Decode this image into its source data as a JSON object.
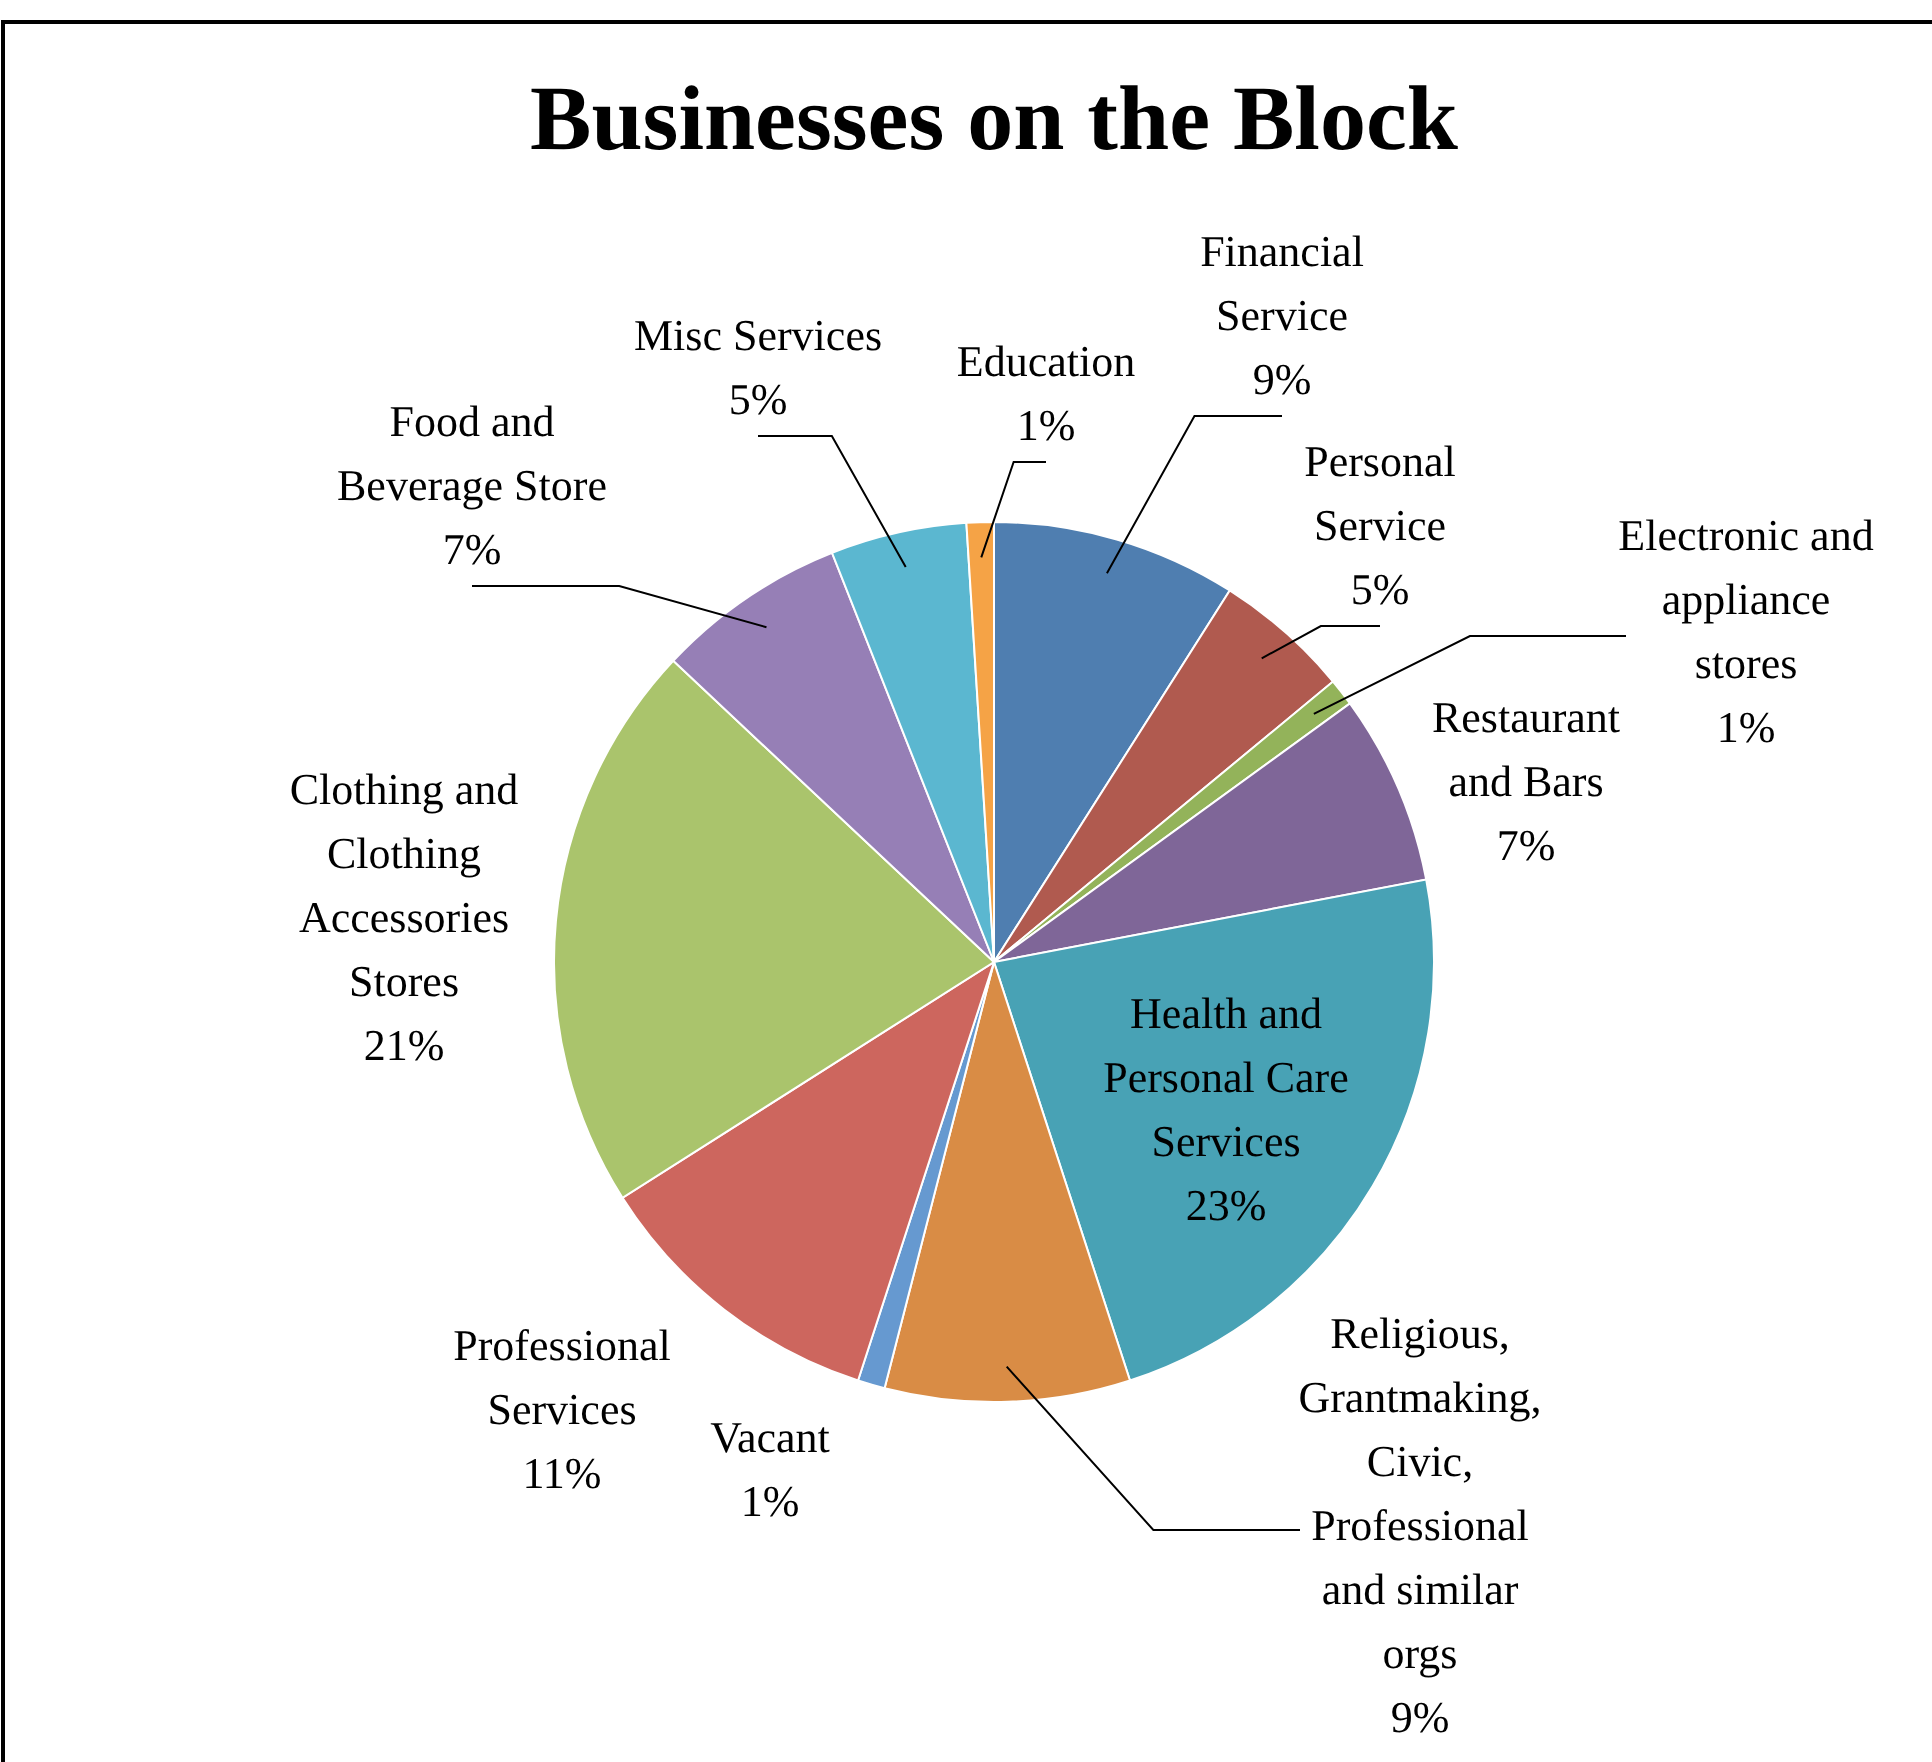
{
  "chart_data": {
    "type": "pie",
    "title": "Businesses  on  the Block",
    "categories": [
      "Financial Service",
      "Personal Service",
      "Electronic and appliance stores",
      "Restaurant and Bars",
      "Health and Personal Care Services",
      "Religious, Grantmaking, Civic, Professional and similar orgs",
      "Vacant",
      "Professional Services",
      "Clothing and Clothing Accessories Stores",
      "Food and Beverage Store",
      "Misc Services",
      "Education"
    ],
    "values": [
      9,
      5,
      1,
      7,
      23,
      9,
      1,
      11,
      21,
      7,
      5,
      1
    ],
    "value_labels": [
      "9%",
      "5%",
      "1%",
      "7%",
      "23%",
      "9%",
      "1%",
      "11%",
      "21%",
      "7%",
      "5%",
      "1%"
    ],
    "colors": [
      "#4f7eb0",
      "#b05a4f",
      "#93b35a",
      "#7f6698",
      "#48a2b5",
      "#d98c45",
      "#6699d0",
      "#cd665e",
      "#aac46c",
      "#967fb6",
      "#5bb7d0",
      "#f5a346"
    ]
  }
}
